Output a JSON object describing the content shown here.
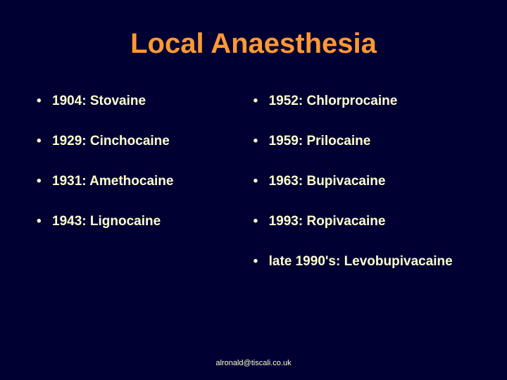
{
  "colors": {
    "background": "#000033",
    "title": "#ff9933",
    "body_text": "#ffffcc"
  },
  "typography": {
    "family": "Comic Sans MS",
    "title_size_pt": 40,
    "body_size_pt": 19,
    "footer_size_pt": 11,
    "title_weight": "bold",
    "body_weight": "bold"
  },
  "title": "Local Anaesthesia",
  "bullet_char": "•",
  "left_items": [
    "1904: Stovaine",
    "1929: Cinchocaine",
    "1931: Amethocaine",
    "1943: Lignocaine"
  ],
  "right_items": [
    "1952: Chlorprocaine",
    "1959: Prilocaine",
    "1963: Bupivacaine",
    "1993: Ropivacaine",
    "late 1990's: Levobupivacaine"
  ],
  "footer": "alronald@tiscali.co.uk"
}
